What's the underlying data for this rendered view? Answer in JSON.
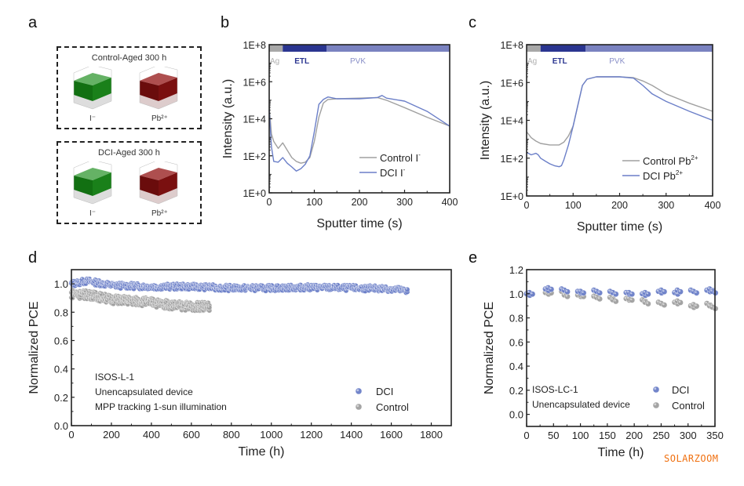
{
  "panel_letters": {
    "a": "a",
    "b": "b",
    "c": "c",
    "d": "d",
    "e": "e"
  },
  "panel_a": {
    "boxes": [
      {
        "title": "Control-Aged 300 h",
        "labels": [
          "I⁻",
          "Pb²⁺"
        ]
      },
      {
        "title": "DCI-Aged 300 h",
        "labels": [
          "I⁻",
          "Pb²⁺"
        ]
      }
    ],
    "colors": {
      "iodide": "#1e7a1e",
      "lead": "#7a1010"
    }
  },
  "watermark": "SOLARZOOM",
  "colors": {
    "control": "#a0a0a0",
    "dci": "#6b7fc8",
    "ag_bar": "#a8a8a8",
    "etl_bar": "#2a3590",
    "pvk_bar": "#7a82c0",
    "etl_text": "#2a3590",
    "pvk_text": "#8a90c8",
    "ag_text": "#b0b0b0"
  },
  "chart_data": [
    {
      "id": "b",
      "type": "line",
      "yscale": "log",
      "title": "",
      "xlabel": "Sputter time (s)",
      "ylabel": "Intensity (a.u.)",
      "xlim": [
        0,
        400
      ],
      "ylim": [
        1,
        100000000
      ],
      "xticks": [
        "0",
        "100",
        "200",
        "300",
        "400"
      ],
      "yticks": [
        "1E+0",
        "1E+2",
        "1E+4",
        "1E+6",
        "1E+8"
      ],
      "layers": [
        {
          "name": "Ag",
          "range": [
            0,
            30
          ]
        },
        {
          "name": "ETL",
          "range": [
            30,
            127
          ]
        },
        {
          "name": "PVK",
          "range": [
            127,
            400
          ]
        }
      ],
      "legend": "bottom-right",
      "series": [
        {
          "name": "Control I⁻",
          "sup": "-",
          "base": "Control I",
          "x": [
            0,
            5,
            10,
            20,
            30,
            40,
            50,
            60,
            70,
            80,
            90,
            100,
            110,
            120,
            130,
            150,
            200,
            240,
            260,
            300,
            350,
            400
          ],
          "y": [
            50000,
            1500,
            600,
            250,
            500,
            200,
            80,
            50,
            40,
            45,
            80,
            600,
            12000,
            70000,
            110000,
            120000,
            130000,
            140000,
            100000,
            40000,
            12000,
            4000
          ]
        },
        {
          "name": "DCI I⁻",
          "sup": "-",
          "base": "DCI I",
          "x": [
            0,
            5,
            10,
            20,
            30,
            40,
            50,
            60,
            70,
            80,
            90,
            100,
            110,
            120,
            130,
            150,
            200,
            240,
            250,
            260,
            300,
            350,
            400
          ],
          "y": [
            30000,
            300,
            50,
            45,
            80,
            40,
            25,
            15,
            20,
            35,
            100,
            2000,
            60000,
            110000,
            150000,
            120000,
            120000,
            140000,
            180000,
            130000,
            90000,
            25000,
            4000
          ]
        }
      ]
    },
    {
      "id": "c",
      "type": "line",
      "yscale": "log",
      "title": "",
      "xlabel": "Sputter time (s)",
      "ylabel": "Intensity (a.u.)",
      "xlim": [
        0,
        400
      ],
      "ylim": [
        1,
        100000000
      ],
      "xticks": [
        "0",
        "100",
        "200",
        "300",
        "400"
      ],
      "yticks": [
        "1E+0",
        "1E+2",
        "1E+4",
        "1E+6",
        "1E+8"
      ],
      "layers": [
        {
          "name": "Ag",
          "range": [
            0,
            30
          ]
        },
        {
          "name": "ETL",
          "range": [
            30,
            127
          ]
        },
        {
          "name": "PVK",
          "range": [
            127,
            400
          ]
        }
      ],
      "legend": "bottom-right",
      "series": [
        {
          "name": "Control Pb²⁺",
          "sup": "2+",
          "base": "Control Pb",
          "x": [
            0,
            10,
            20,
            30,
            50,
            70,
            80,
            90,
            100,
            110,
            120,
            130,
            150,
            200,
            230,
            250,
            270,
            300,
            350,
            400
          ],
          "y": [
            2500,
            1200,
            800,
            600,
            500,
            500,
            700,
            1500,
            5000,
            60000,
            700000,
            1500000,
            2000000,
            2000000,
            1800000,
            1200000,
            700000,
            250000,
            80000,
            30000
          ]
        },
        {
          "name": "DCI Pb²⁺",
          "sup": "2+",
          "base": "DCI Pb",
          "x": [
            0,
            10,
            20,
            25,
            30,
            40,
            50,
            60,
            70,
            75,
            80,
            90,
            100,
            110,
            120,
            130,
            150,
            200,
            230,
            250,
            270,
            300,
            350,
            400
          ],
          "y": [
            200,
            150,
            180,
            150,
            100,
            70,
            50,
            40,
            35,
            40,
            80,
            500,
            5000,
            60000,
            700000,
            1500000,
            2000000,
            2000000,
            1700000,
            700000,
            250000,
            100000,
            30000,
            10000
          ]
        }
      ]
    },
    {
      "id": "d",
      "type": "scatter",
      "title": "",
      "xlabel": "Time (h)",
      "ylabel": "Normalized PCE",
      "xlim": [
        0,
        1900
      ],
      "ylim": [
        0,
        1.1
      ],
      "xticks": [
        "0",
        "200",
        "400",
        "600",
        "800",
        "1000",
        "1200",
        "1400",
        "1600",
        "1800"
      ],
      "yticks": [
        "0.0",
        "0.2",
        "0.4",
        "0.6",
        "0.8",
        "1.0"
      ],
      "annotations": [
        "ISOS-L-1",
        "Unencapsulated device",
        "MPP tracking 1-sun illumination"
      ],
      "legend": "bottom-right",
      "series": [
        {
          "name": "DCI",
          "trend_x": [
            0,
            80,
            200,
            400,
            600,
            800,
            1000,
            1200,
            1400,
            1600,
            1680
          ],
          "trend_y": [
            1.0,
            1.02,
            0.99,
            0.98,
            0.98,
            0.97,
            0.97,
            0.975,
            0.97,
            0.965,
            0.95
          ]
        },
        {
          "name": "Control",
          "trend_x": [
            0,
            100,
            200,
            300,
            400,
            500,
            600,
            690
          ],
          "trend_y": [
            0.93,
            0.92,
            0.89,
            0.88,
            0.87,
            0.85,
            0.84,
            0.84
          ]
        }
      ]
    },
    {
      "id": "e",
      "type": "scatter",
      "title": "",
      "xlabel": "Time (h)",
      "ylabel": "Normalized PCE",
      "xlim": [
        0,
        350
      ],
      "ylim": [
        -0.1,
        1.2
      ],
      "xticks": [
        "0",
        "50",
        "100",
        "150",
        "200",
        "250",
        "300",
        "350"
      ],
      "yticks": [
        "0.0",
        "0.2",
        "0.4",
        "0.6",
        "0.8",
        "1.0",
        "1.2"
      ],
      "annotations": [
        "ISOS-LC-1",
        "Unencapsulated device"
      ],
      "legend": "bottom-right",
      "series": [
        {
          "name": "DCI",
          "x": [
            0,
            5,
            35,
            40,
            65,
            70,
            95,
            100,
            125,
            130,
            155,
            160,
            185,
            190,
            215,
            220,
            245,
            250,
            275,
            280,
            305,
            310,
            335,
            340,
            345
          ],
          "y": [
            1.0,
            1.01,
            1.04,
            1.05,
            1.04,
            1.03,
            1.02,
            1.02,
            1.03,
            1.02,
            1.02,
            1.01,
            1.01,
            1.01,
            1.0,
            1.01,
            1.02,
            1.03,
            1.01,
            1.03,
            1.03,
            1.02,
            1.03,
            1.04,
            1.02
          ]
        },
        {
          "name": "Control",
          "x": [
            0,
            5,
            35,
            40,
            65,
            70,
            95,
            100,
            125,
            130,
            155,
            160,
            185,
            190,
            215,
            220,
            245,
            250,
            275,
            280,
            305,
            310,
            335,
            340,
            345
          ],
          "y": [
            1.0,
            1.01,
            1.01,
            1.02,
            1.02,
            0.99,
            0.99,
            0.99,
            0.98,
            0.97,
            0.97,
            0.95,
            0.96,
            0.96,
            0.95,
            0.93,
            0.93,
            0.92,
            0.93,
            0.94,
            0.9,
            0.91,
            0.92,
            0.9,
            0.89
          ]
        }
      ]
    }
  ]
}
